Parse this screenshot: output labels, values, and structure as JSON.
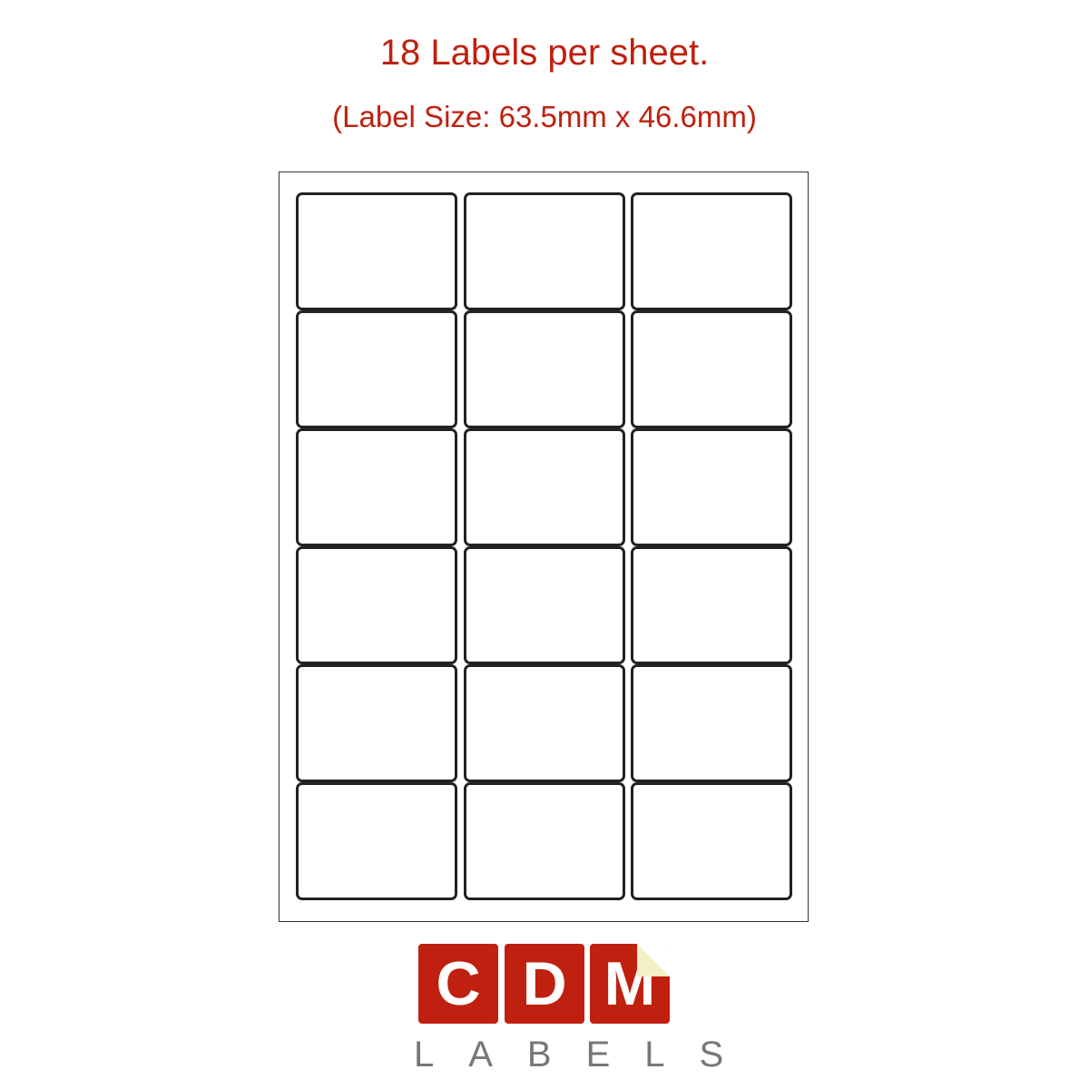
{
  "header": {
    "title": "18 Labels per sheet.",
    "subtitle": "(Label Size: 63.5mm x 46.6mm)"
  },
  "sheet": {
    "columns": 3,
    "rows": 6,
    "label_count": 18
  },
  "logo": {
    "letters": [
      "C",
      "D",
      "M"
    ],
    "wordmark": "LABELS",
    "brand_color": "#c0200f",
    "wordmark_color": "#777777"
  }
}
